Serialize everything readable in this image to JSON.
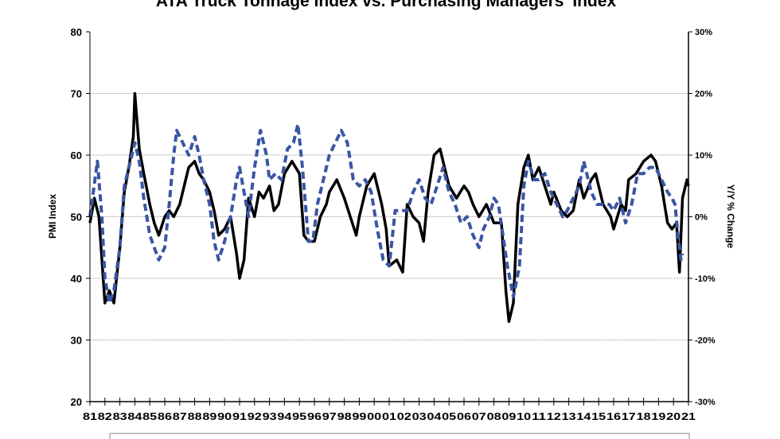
{
  "chart_data": {
    "type": "line",
    "title": "ATA Truck Tonnage Index vs. Purchasing Managers' Index",
    "ylabel": "PMI Index",
    "y2label": "Y/Y % Change",
    "ylim": [
      20,
      80
    ],
    "y2lim": [
      -30,
      30
    ],
    "yticks": [
      "20",
      "30",
      "40",
      "50",
      "60",
      "70",
      "80"
    ],
    "y2ticks": [
      "-30%",
      "-20%",
      "-10%",
      "0%",
      "10%",
      "20%",
      "30%"
    ],
    "xticks": [
      "81",
      "82",
      "83",
      "84",
      "85",
      "86",
      "87",
      "88",
      "89",
      "90",
      "91",
      "92",
      "93",
      "94",
      "95",
      "96",
      "97",
      "98",
      "99",
      "00",
      "01",
      "02",
      "03",
      "04",
      "05",
      "06",
      "07",
      "08",
      "09",
      "10",
      "11",
      "12",
      "13",
      "14",
      "15",
      "16",
      "17",
      "18",
      "19",
      "20",
      "21"
    ],
    "xlim": [
      1981,
      2021
    ],
    "grid": true,
    "legend": "bottom",
    "series": [
      {
        "axis": "left",
        "color": "#000000",
        "style": "solid",
        "points": [
          [
            1981.0,
            49
          ],
          [
            1981.3,
            53
          ],
          [
            1981.6,
            50
          ],
          [
            1982.0,
            36
          ],
          [
            1982.3,
            38
          ],
          [
            1982.6,
            36
          ],
          [
            1983.0,
            45
          ],
          [
            1983.3,
            54
          ],
          [
            1983.6,
            58
          ],
          [
            1983.9,
            63
          ],
          [
            1984.0,
            70
          ],
          [
            1984.3,
            61
          ],
          [
            1984.6,
            57
          ],
          [
            1985.0,
            52
          ],
          [
            1985.3,
            49
          ],
          [
            1985.6,
            47
          ],
          [
            1986.0,
            50
          ],
          [
            1986.3,
            51
          ],
          [
            1986.6,
            50
          ],
          [
            1987.0,
            52
          ],
          [
            1987.3,
            55
          ],
          [
            1987.6,
            58
          ],
          [
            1988.0,
            59
          ],
          [
            1988.3,
            57
          ],
          [
            1988.6,
            56
          ],
          [
            1989.0,
            54
          ],
          [
            1989.3,
            51
          ],
          [
            1989.6,
            47
          ],
          [
            1990.0,
            48
          ],
          [
            1990.4,
            50
          ],
          [
            1990.8,
            44
          ],
          [
            1991.0,
            40
          ],
          [
            1991.3,
            43
          ],
          [
            1991.6,
            53
          ],
          [
            1992.0,
            50
          ],
          [
            1992.3,
            54
          ],
          [
            1992.6,
            53
          ],
          [
            1993.0,
            55
          ],
          [
            1993.3,
            51
          ],
          [
            1993.6,
            52
          ],
          [
            1994.0,
            57
          ],
          [
            1994.5,
            59
          ],
          [
            1995.0,
            57
          ],
          [
            1995.3,
            47
          ],
          [
            1995.6,
            46
          ],
          [
            1996.0,
            46
          ],
          [
            1996.4,
            50
          ],
          [
            1996.8,
            52
          ],
          [
            1997.0,
            54
          ],
          [
            1997.5,
            56
          ],
          [
            1998.0,
            53
          ],
          [
            1998.4,
            50
          ],
          [
            1998.8,
            47
          ],
          [
            1999.0,
            50
          ],
          [
            1999.5,
            55
          ],
          [
            2000.0,
            57
          ],
          [
            2000.5,
            52
          ],
          [
            2000.8,
            48
          ],
          [
            2001.0,
            42
          ],
          [
            2001.5,
            43
          ],
          [
            2001.9,
            41
          ],
          [
            2002.2,
            52
          ],
          [
            2002.6,
            50
          ],
          [
            2003.0,
            49
          ],
          [
            2003.3,
            46
          ],
          [
            2003.6,
            54
          ],
          [
            2004.0,
            60
          ],
          [
            2004.4,
            61
          ],
          [
            2004.8,
            57
          ],
          [
            2005.0,
            55
          ],
          [
            2005.5,
            53
          ],
          [
            2006.0,
            55
          ],
          [
            2006.3,
            54
          ],
          [
            2006.6,
            52
          ],
          [
            2007.0,
            50
          ],
          [
            2007.5,
            52
          ],
          [
            2008.0,
            49
          ],
          [
            2008.5,
            49
          ],
          [
            2008.8,
            38
          ],
          [
            2009.0,
            33
          ],
          [
            2009.3,
            36
          ],
          [
            2009.6,
            52
          ],
          [
            2010.0,
            58
          ],
          [
            2010.3,
            60
          ],
          [
            2010.6,
            56
          ],
          [
            2011.0,
            58
          ],
          [
            2011.4,
            55
          ],
          [
            2011.8,
            52
          ],
          [
            2012.0,
            54
          ],
          [
            2012.5,
            51
          ],
          [
            2012.9,
            50
          ],
          [
            2013.3,
            51
          ],
          [
            2013.7,
            56
          ],
          [
            2014.0,
            53
          ],
          [
            2014.5,
            56
          ],
          [
            2014.8,
            57
          ],
          [
            2015.3,
            52
          ],
          [
            2015.8,
            50
          ],
          [
            2016.0,
            48
          ],
          [
            2016.5,
            52
          ],
          [
            2016.8,
            51
          ],
          [
            2017.0,
            56
          ],
          [
            2017.5,
            57
          ],
          [
            2018.0,
            59
          ],
          [
            2018.5,
            60
          ],
          [
            2018.8,
            59
          ],
          [
            2019.2,
            55
          ],
          [
            2019.6,
            49
          ],
          [
            2019.9,
            48
          ],
          [
            2020.2,
            49
          ],
          [
            2020.4,
            41
          ],
          [
            2020.6,
            53
          ],
          [
            2020.9,
            56
          ],
          [
            2021.0,
            55
          ]
        ]
      },
      {
        "axis": "right",
        "color": "#3A55A4",
        "style": "dashed",
        "points": [
          [
            1981.0,
            0
          ],
          [
            1981.5,
            9
          ],
          [
            1981.8,
            0
          ],
          [
            1982.0,
            -10
          ],
          [
            1982.3,
            -14
          ],
          [
            1982.6,
            -12
          ],
          [
            1983.0,
            -5
          ],
          [
            1983.3,
            5
          ],
          [
            1983.6,
            8
          ],
          [
            1984.0,
            12
          ],
          [
            1984.3,
            9
          ],
          [
            1984.6,
            3
          ],
          [
            1985.0,
            -3
          ],
          [
            1985.3,
            -5
          ],
          [
            1985.6,
            -7
          ],
          [
            1986.0,
            -5
          ],
          [
            1986.3,
            2
          ],
          [
            1986.6,
            10
          ],
          [
            1986.8,
            14
          ],
          [
            1987.2,
            12
          ],
          [
            1987.6,
            10
          ],
          [
            1988.0,
            13
          ],
          [
            1988.3,
            10
          ],
          [
            1988.6,
            6
          ],
          [
            1989.0,
            2
          ],
          [
            1989.3,
            -4
          ],
          [
            1989.6,
            -7
          ],
          [
            1990.0,
            -4
          ],
          [
            1990.4,
            0
          ],
          [
            1990.8,
            6
          ],
          [
            1991.0,
            8
          ],
          [
            1991.3,
            4
          ],
          [
            1991.6,
            0
          ],
          [
            1992.0,
            8
          ],
          [
            1992.4,
            14
          ],
          [
            1992.8,
            10
          ],
          [
            1993.0,
            6
          ],
          [
            1993.4,
            7
          ],
          [
            1993.8,
            6
          ],
          [
            1994.2,
            11
          ],
          [
            1994.6,
            12
          ],
          [
            1994.9,
            15
          ],
          [
            1995.2,
            8
          ],
          [
            1995.6,
            -4
          ],
          [
            1995.9,
            -4
          ],
          [
            1996.2,
            2
          ],
          [
            1996.6,
            6
          ],
          [
            1997.0,
            10
          ],
          [
            1997.4,
            12
          ],
          [
            1997.8,
            14
          ],
          [
            1998.2,
            12
          ],
          [
            1998.6,
            6
          ],
          [
            1999.0,
            5
          ],
          [
            1999.4,
            6
          ],
          [
            1999.8,
            4
          ],
          [
            2000.2,
            -2
          ],
          [
            2000.6,
            -7
          ],
          [
            2001.0,
            -8
          ],
          [
            2001.4,
            1
          ],
          [
            2001.8,
            1
          ],
          [
            2002.2,
            1
          ],
          [
            2002.6,
            4
          ],
          [
            2003.0,
            6
          ],
          [
            2003.4,
            3
          ],
          [
            2003.8,
            2
          ],
          [
            2004.2,
            5
          ],
          [
            2004.6,
            8
          ],
          [
            2005.0,
            4
          ],
          [
            2005.4,
            2
          ],
          [
            2005.8,
            -1
          ],
          [
            2006.2,
            0
          ],
          [
            2006.6,
            -3
          ],
          [
            2007.0,
            -5
          ],
          [
            2007.3,
            -2
          ],
          [
            2007.7,
            0
          ],
          [
            2008.0,
            3
          ],
          [
            2008.3,
            2
          ],
          [
            2008.6,
            -3
          ],
          [
            2008.9,
            -8
          ],
          [
            2009.3,
            -13
          ],
          [
            2009.7,
            -8
          ],
          [
            2010.0,
            5
          ],
          [
            2010.3,
            9
          ],
          [
            2010.7,
            6
          ],
          [
            2011.0,
            6
          ],
          [
            2011.4,
            7
          ],
          [
            2011.8,
            4
          ],
          [
            2012.2,
            2
          ],
          [
            2012.6,
            0
          ],
          [
            2012.9,
            1
          ],
          [
            2013.3,
            3
          ],
          [
            2013.7,
            5
          ],
          [
            2014.0,
            9
          ],
          [
            2014.5,
            4
          ],
          [
            2014.9,
            2
          ],
          [
            2015.3,
            2
          ],
          [
            2015.7,
            2
          ],
          [
            2016.0,
            1
          ],
          [
            2016.4,
            3
          ],
          [
            2016.8,
            -1
          ],
          [
            2017.2,
            2
          ],
          [
            2017.6,
            7
          ],
          [
            2018.0,
            7
          ],
          [
            2018.4,
            8
          ],
          [
            2018.8,
            8
          ],
          [
            2019.2,
            6
          ],
          [
            2019.6,
            4
          ],
          [
            2019.9,
            3
          ],
          [
            2020.1,
            2
          ],
          [
            2020.3,
            -3
          ],
          [
            2020.5,
            -7
          ],
          [
            2020.6,
            -6
          ]
        ]
      }
    ]
  }
}
